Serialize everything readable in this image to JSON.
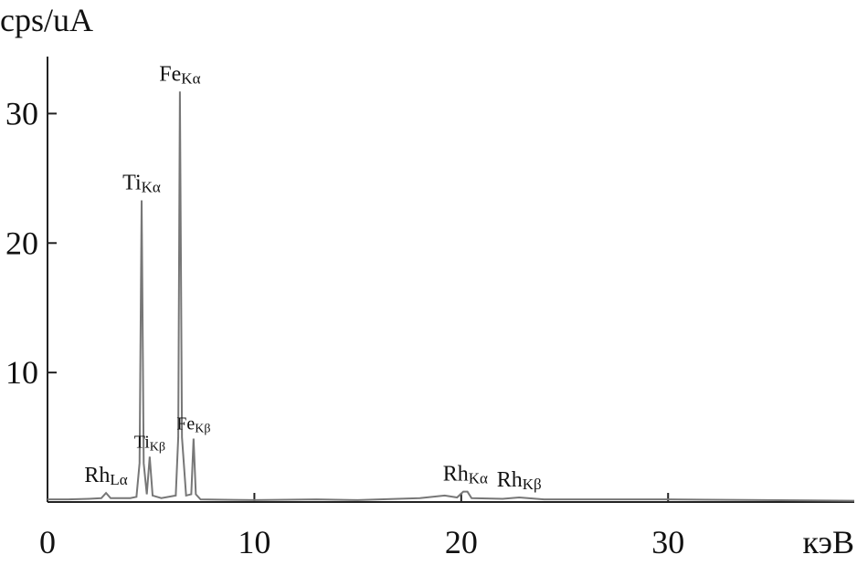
{
  "chart_data": {
    "type": "line",
    "y_label": "cps/uA",
    "x_label": "кэВ",
    "x": [
      0,
      1,
      2,
      2.6,
      2.83,
      3.05,
      4,
      4.3,
      4.45,
      4.55,
      4.65,
      4.8,
      4.94,
      5.08,
      5.5,
      6.2,
      6.32,
      6.4,
      6.5,
      6.7,
      6.95,
      7.06,
      7.17,
      7.4,
      10,
      13,
      15,
      18,
      19.2,
      19.8,
      20.1,
      20.3,
      20.5,
      22,
      22.8,
      24,
      30,
      39
    ],
    "values": [
      0.2,
      0.2,
      0.25,
      0.3,
      0.7,
      0.3,
      0.3,
      0.4,
      3,
      23.3,
      3,
      0.6,
      3.5,
      0.5,
      0.3,
      0.5,
      5,
      31.7,
      5,
      0.5,
      0.6,
      4.9,
      0.6,
      0.2,
      0.15,
      0.2,
      0.15,
      0.3,
      0.5,
      0.35,
      0.8,
      0.8,
      0.3,
      0.25,
      0.35,
      0.2,
      0.2,
      0.1
    ],
    "color": "#777777",
    "xlim": [
      0,
      39
    ],
    "ylim": [
      0,
      34.4
    ],
    "xticks": [
      0,
      10,
      20,
      30
    ],
    "yticks": [
      10,
      20,
      30
    ],
    "annotations": [
      {
        "label": "Rh",
        "sub": "Lα",
        "x": 2.83
      },
      {
        "label": "Ti",
        "sub": "Kα",
        "x": 4.55
      },
      {
        "label": "Ti",
        "sub": "Kβ",
        "x": 4.94
      },
      {
        "label": "Fe",
        "sub": "Kα",
        "x": 6.4
      },
      {
        "label": "Fe",
        "sub": "Kβ",
        "x": 7.06
      },
      {
        "label": "Rh",
        "sub": "Kα",
        "x": 20.2
      },
      {
        "label": "Rh",
        "sub": "Kβ",
        "x": 22.8
      }
    ]
  }
}
